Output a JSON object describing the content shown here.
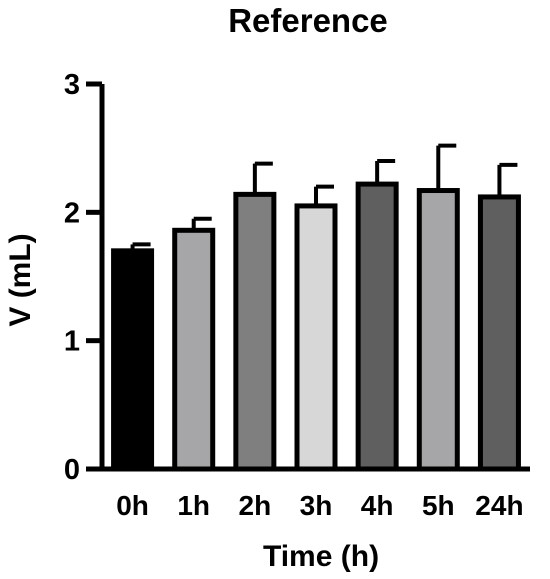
{
  "chart_data": {
    "type": "bar",
    "title": "Reference",
    "xlabel": "Time (h)",
    "ylabel": "V (mL)",
    "categories": [
      "0h",
      "1h",
      "2h",
      "3h",
      "4h",
      "5h",
      "24h"
    ],
    "values": [
      1.7,
      1.86,
      2.14,
      2.05,
      2.22,
      2.17,
      2.12
    ],
    "error_upper": [
      0.05,
      0.09,
      0.24,
      0.15,
      0.18,
      0.35,
      0.25
    ],
    "bar_colors": [
      "#000000",
      "#a6a6a8",
      "#7f7f7f",
      "#d7d7d7",
      "#5f5f5f",
      "#a6a6a8",
      "#5f5f5f"
    ],
    "ylim": [
      0,
      3
    ],
    "yticks": [
      "0",
      "1",
      "2",
      "3"
    ],
    "grid": false
  }
}
